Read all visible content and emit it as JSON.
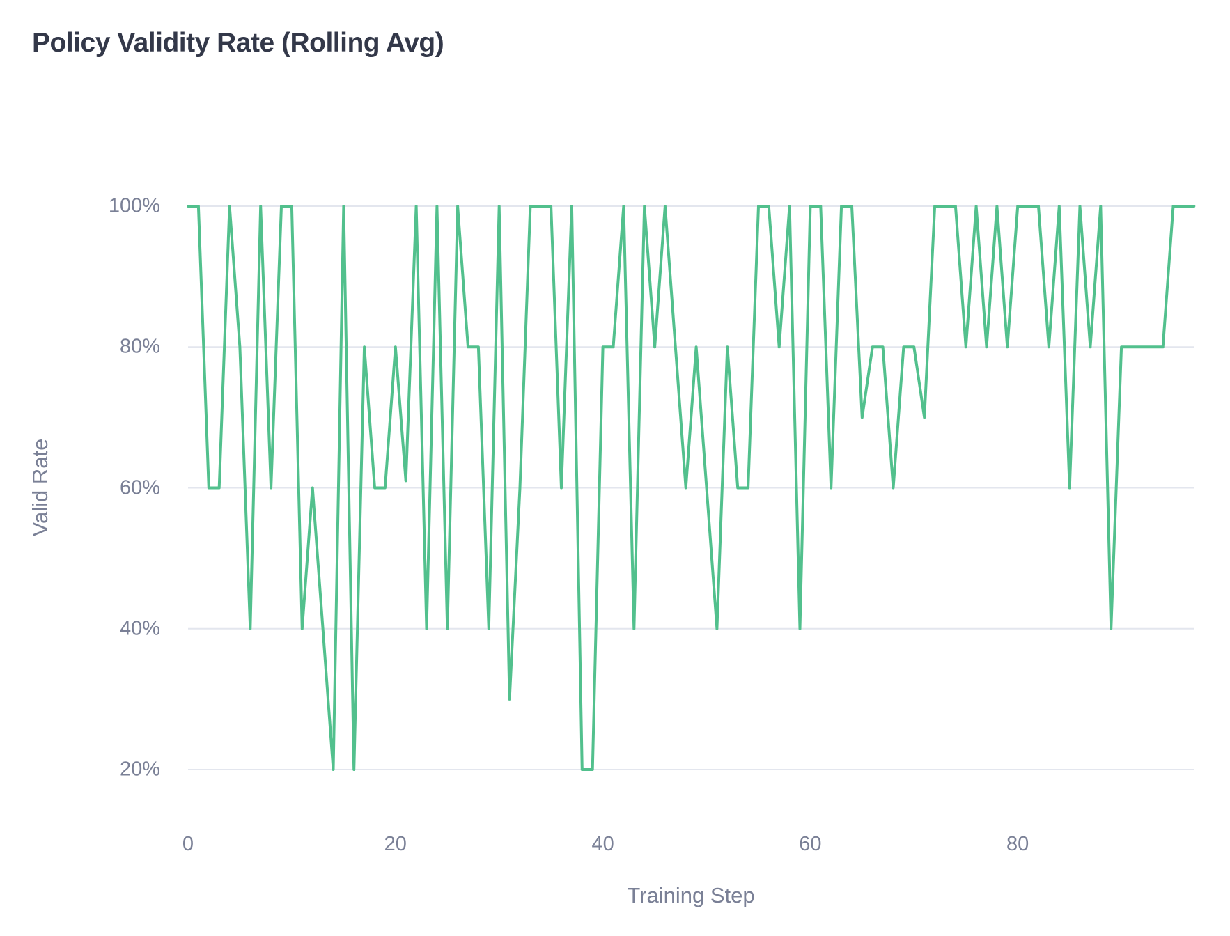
{
  "title": "Policy Validity Rate (Rolling Avg)",
  "y_axis": {
    "label": "Valid Rate",
    "tick_labels": [
      "100%",
      "80%",
      "60%",
      "40%",
      "20%"
    ],
    "tick_values": [
      100,
      80,
      60,
      40,
      20
    ]
  },
  "x_axis": {
    "label": "Training Step",
    "tick_labels": [
      "0",
      "20",
      "40",
      "60",
      "80"
    ],
    "tick_values": [
      0,
      20,
      40,
      60,
      80
    ]
  },
  "colors": {
    "line": "#52C08D",
    "grid": "#E3E6EE",
    "tick_text": "#7A8096",
    "title_text": "#333849",
    "background": "#FFFFFF"
  },
  "chart_data": {
    "type": "line",
    "title": "Policy Validity Rate (Rolling Avg)",
    "xlabel": "Training Step",
    "ylabel": "Valid Rate",
    "x_start": 0,
    "x_step": 1,
    "x_end": 97,
    "ylim": [
      20,
      100
    ],
    "y_unit": "%",
    "grid": "horizontal-only",
    "legend": "none",
    "values": [
      100,
      100,
      60,
      60,
      100,
      80,
      40,
      100,
      60,
      100,
      100,
      40,
      60,
      40,
      20,
      100,
      20,
      80,
      60,
      60,
      80,
      61,
      100,
      40,
      100,
      40,
      100,
      80,
      80,
      40,
      100,
      30,
      60,
      100,
      100,
      100,
      60,
      100,
      20,
      20,
      80,
      80,
      100,
      40,
      100,
      80,
      100,
      80,
      60,
      80,
      60,
      40,
      80,
      60,
      60,
      100,
      100,
      80,
      100,
      40,
      100,
      100,
      60,
      100,
      100,
      70,
      80,
      80,
      60,
      80,
      80,
      70,
      100,
      100,
      100,
      80,
      100,
      80,
      100,
      80,
      100,
      100,
      100,
      80,
      100,
      60,
      100,
      80,
      100,
      40,
      80,
      80,
      80,
      80,
      80,
      100,
      100,
      100
    ]
  }
}
